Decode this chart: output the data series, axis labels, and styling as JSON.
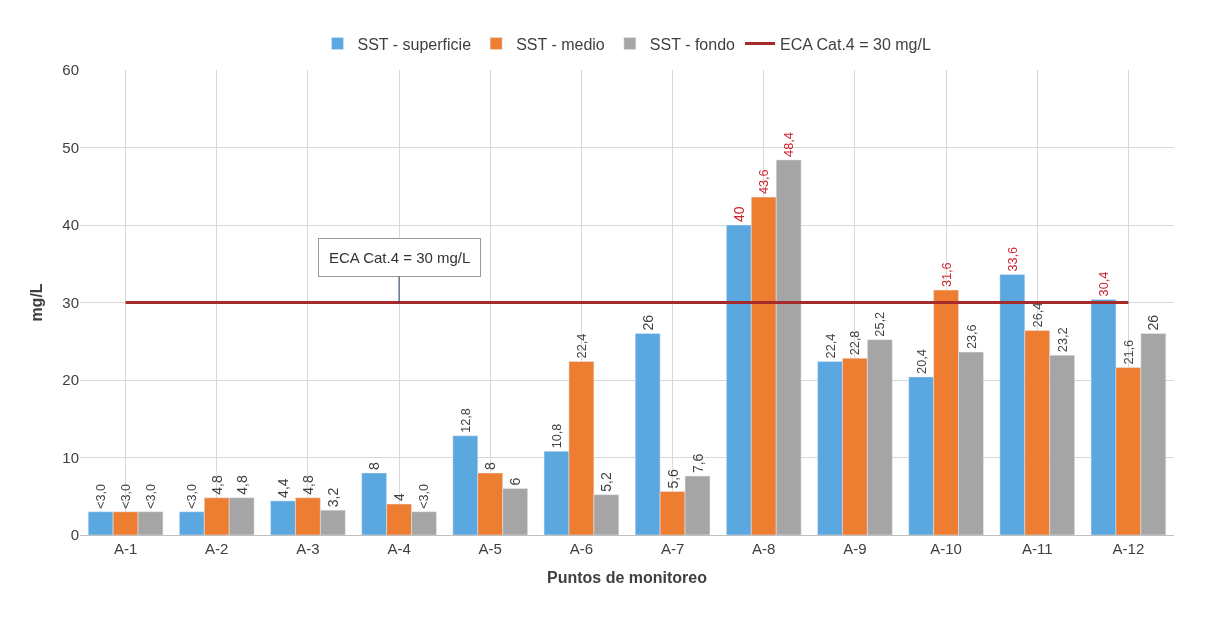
{
  "chart_data": {
    "type": "bar",
    "xlabel": "Puntos de monitoreo",
    "ylabel": "mg/L",
    "categories": [
      "A-1",
      "A-2",
      "A-3",
      "A-4",
      "A-5",
      "A-6",
      "A-7",
      "A-8",
      "A-9",
      "A-10",
      "A-11",
      "A-12"
    ],
    "series": [
      {
        "name": "SST - superficie",
        "color": "#5ba7e0",
        "values": [
          3,
          3,
          4.4,
          8,
          12.8,
          10.8,
          26,
          40,
          22.4,
          20.4,
          33.6,
          30.4
        ],
        "value_labels": [
          "<3,0",
          "<3,0",
          "4,4",
          "8",
          "12,8",
          "10,8",
          "26",
          "40",
          "22,4",
          "20,4",
          "33,6",
          "30,4"
        ]
      },
      {
        "name": "SST - medio",
        "color": "#ed7d31",
        "values": [
          3,
          4.8,
          4.8,
          4,
          8,
          22.4,
          5.6,
          43.6,
          22.8,
          31.6,
          26.4,
          21.6
        ],
        "value_labels": [
          "<3,0",
          "4,8",
          "4,8",
          "4",
          "8",
          "22,4",
          "5,6",
          "43,6",
          "22,8",
          "31,6",
          "26,4",
          "21,6"
        ]
      },
      {
        "name": "SST - fondo",
        "color": "#a5a5a5",
        "values": [
          3,
          4.8,
          3.2,
          3,
          6,
          5.2,
          7.6,
          48.4,
          25.2,
          23.6,
          23.2,
          26
        ],
        "value_labels": [
          "<3,0",
          "4,8",
          "3,2",
          "<3,0",
          "6",
          "5,2",
          "7,6",
          "48,4",
          "25,2",
          "23,6",
          "23,2",
          "26"
        ]
      },
      {
        "name": "ECA Cat.4 = 30 mg/L",
        "type": "line",
        "color": "#a52a2a",
        "values": [
          30,
          30,
          30,
          30,
          30,
          30,
          30,
          30,
          30,
          30,
          30,
          30
        ]
      }
    ],
    "annotations": [
      {
        "text": "ECA Cat.4 = 30 mg/L",
        "x": "A-4",
        "y": 30
      }
    ],
    "ylim": [
      0,
      60
    ],
    "yticks": [
      0,
      10,
      20,
      30,
      40,
      50,
      60
    ],
    "grid": true,
    "legend": "top"
  }
}
